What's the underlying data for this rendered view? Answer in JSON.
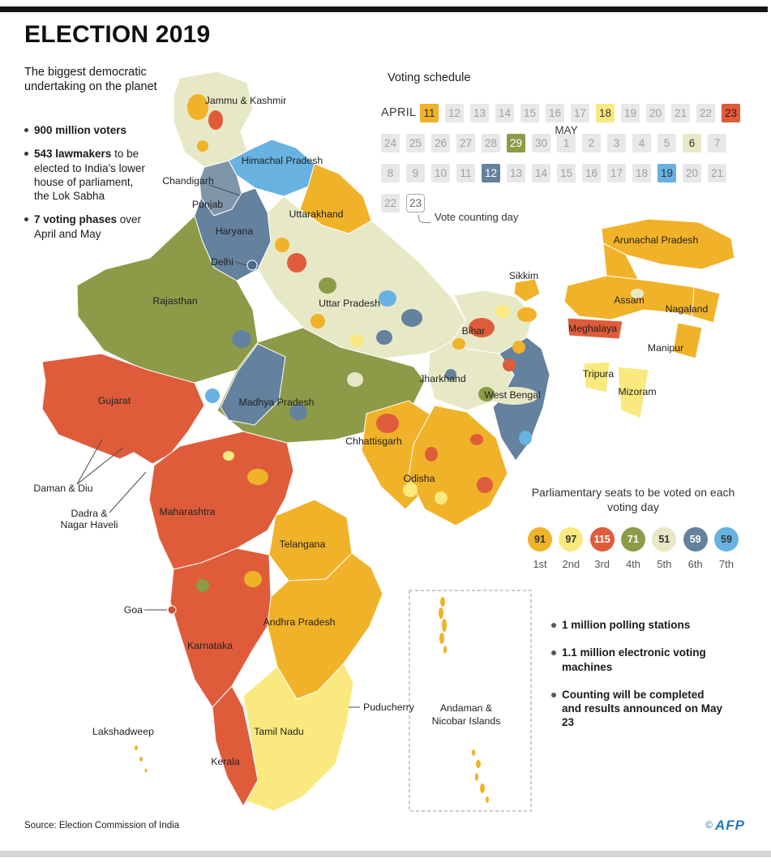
{
  "header": {
    "title": "ELECTION 2019",
    "intro": "The biggest democratic undertaking on the planet"
  },
  "facts_left": [
    {
      "bold": "900 million voters",
      "rest": ""
    },
    {
      "bold": "543 lawmakers",
      "rest": " to be elected to India's lower house of parliament, the Lok Sabha"
    },
    {
      "bold": "7 voting phases",
      "rest": " over April and May"
    }
  ],
  "facts_right": [
    "1 million polling stations",
    "1.1 million electronic voting machines",
    "Counting will be completed and results announced on May 23"
  ],
  "schedule": {
    "heading": "Voting schedule",
    "note": "Vote counting day",
    "rows": [
      [
        {
          "t": "APRIL",
          "c": "month"
        },
        {
          "t": "11",
          "c": "p1"
        },
        {
          "t": "12"
        },
        {
          "t": "13"
        },
        {
          "t": "14"
        },
        {
          "t": "15"
        },
        {
          "t": "16"
        },
        {
          "t": "17"
        },
        {
          "t": "18",
          "c": "p2"
        },
        {
          "t": "19"
        },
        {
          "t": "20"
        },
        {
          "t": "21"
        },
        {
          "t": "22"
        },
        {
          "t": "23",
          "c": "p3"
        }
      ],
      [
        {
          "t": "24"
        },
        {
          "t": "25"
        },
        {
          "t": "26"
        },
        {
          "t": "27"
        },
        {
          "t": "28"
        },
        {
          "t": "29",
          "c": "p4"
        },
        {
          "t": "30"
        },
        {
          "t": "1",
          "may": "MAY"
        },
        {
          "t": "2"
        },
        {
          "t": "3"
        },
        {
          "t": "4"
        },
        {
          "t": "5"
        },
        {
          "t": "6",
          "c": "p5"
        },
        {
          "t": "7"
        }
      ],
      [
        {
          "t": "8"
        },
        {
          "t": "9"
        },
        {
          "t": "10"
        },
        {
          "t": "11"
        },
        {
          "t": "12",
          "c": "p6"
        },
        {
          "t": "13"
        },
        {
          "t": "14"
        },
        {
          "t": "15"
        },
        {
          "t": "16"
        },
        {
          "t": "17"
        },
        {
          "t": "18"
        },
        {
          "t": "19",
          "c": "p7"
        },
        {
          "t": "20"
        },
        {
          "t": "21"
        }
      ],
      [
        {
          "t": "22"
        },
        {
          "t": "23",
          "c": "count"
        }
      ]
    ]
  },
  "phases": {
    "heading": "Parliamentary seats to be voted on each voting day",
    "items": [
      {
        "seats": "91",
        "label": "1st",
        "c": "p1",
        "light": false
      },
      {
        "seats": "97",
        "label": "2nd",
        "c": "p2",
        "light": false
      },
      {
        "seats": "115",
        "label": "3rd",
        "c": "p3",
        "light": true
      },
      {
        "seats": "71",
        "label": "4th",
        "c": "p4",
        "light": true
      },
      {
        "seats": "51",
        "label": "5th",
        "c": "p5",
        "light": false
      },
      {
        "seats": "59",
        "label": "6th",
        "c": "p6",
        "light": true
      },
      {
        "seats": "59",
        "label": "7th",
        "c": "p7",
        "light": false
      }
    ]
  },
  "map": {
    "labels": {
      "jammu_kashmir": "Jammu & Kashmir",
      "himachal": "Himachal Pradesh",
      "chandigarh": "Chandigarh",
      "punjab": "Punjab",
      "uttarakhand": "Uttarakhand",
      "haryana": "Haryana",
      "delhi": "Delhi",
      "rajasthan": "Rajasthan",
      "uttar_pradesh": "Uttar Pradesh",
      "bihar": "Bihar",
      "sikkim": "Sikkim",
      "arunachal": "Arunachal Pradesh",
      "assam": "Assam",
      "nagaland": "Nagaland",
      "meghalaya": "Meghalaya",
      "manipur": "Manipur",
      "tripura": "Tripura",
      "mizoram": "Mizoram",
      "gujarat": "Gujarat",
      "madhya_pradesh": "Madhya Pradesh",
      "jharkhand": "Jharkhand",
      "west_bengal": "West Bengal",
      "chhattisgarh": "Chhattisgarh",
      "odisha": "Odisha",
      "daman_diu": "Daman & Diu",
      "dadra1": "Dadra &",
      "dadra2": "Nagar Haveli",
      "maharashtra": "Maharashtra",
      "telangana": "Telangana",
      "goa": "Goa",
      "andhra": "Andhra Pradesh",
      "karnataka": "Karnataka",
      "puducherry": "Puducherry",
      "lakshadweep": "Lakshadweep",
      "tamil_nadu": "Tamil Nadu",
      "kerala": "Kerala",
      "andaman1": "Andaman &",
      "andaman2": "Nicobar Islands"
    }
  },
  "colors": {
    "p1": "#f0b228",
    "p2": "#fae97e",
    "p3": "#df5c3b",
    "p4": "#8d9b48",
    "p5": "#e7e9c6",
    "p6": "#64819e",
    "p7": "#67b2e1",
    "slate": "#7f96a9",
    "delhi": "#4c6a86",
    "goa": "#cf5030"
  },
  "footer": {
    "source": "Source: Election Commission of India",
    "copyright": "©",
    "credit": "AFP"
  }
}
